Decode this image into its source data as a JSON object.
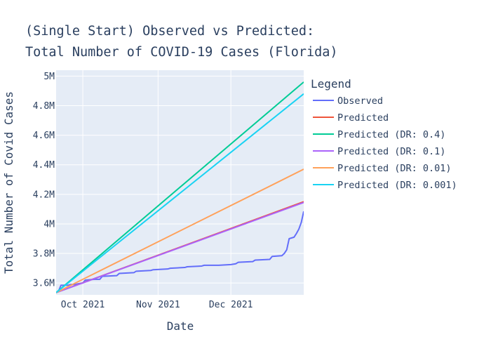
{
  "chart_data": {
    "type": "line",
    "title": [
      "(Single Start) Observed vs Predicted:",
      "Total Number of COVID-19 Cases (Florida)"
    ],
    "xlabel": "Date",
    "ylabel": "Total Number of Covid Cases",
    "x_start": "2021-09-20",
    "x_end": "2021-12-31",
    "xlim": [
      "2021-09-20",
      "2021-12-31"
    ],
    "ylim": [
      3.52,
      5.04
    ],
    "x_ticks": [
      {
        "date": "2021-10-01",
        "label": "Oct 2021"
      },
      {
        "date": "2021-11-01",
        "label": "Nov 2021"
      },
      {
        "date": "2021-12-01",
        "label": "Dec 2021"
      }
    ],
    "y_ticks": [
      {
        "value": 3.6,
        "label": "3.6M"
      },
      {
        "value": 3.8,
        "label": "3.8M"
      },
      {
        "value": 4.0,
        "label": "4M"
      },
      {
        "value": 4.2,
        "label": "4.2M"
      },
      {
        "value": 4.4,
        "label": "4.4M"
      },
      {
        "value": 4.6,
        "label": "4.6M"
      },
      {
        "value": 4.8,
        "label": "4.8M"
      },
      {
        "value": 5.0,
        "label": "5M"
      }
    ],
    "legend": {
      "title": "Legend",
      "position": "right"
    },
    "grid": true,
    "series": [
      {
        "name": "Observed",
        "color": "#636efa",
        "points": [
          [
            "2021-09-20",
            3.535
          ],
          [
            "2021-09-21",
            3.545
          ],
          [
            "2021-09-22",
            3.585
          ],
          [
            "2021-09-25",
            3.585
          ],
          [
            "2021-09-26",
            3.59
          ],
          [
            "2021-09-28",
            3.59
          ],
          [
            "2021-09-29",
            3.595
          ],
          [
            "2021-10-01",
            3.6
          ],
          [
            "2021-10-02",
            3.62
          ],
          [
            "2021-10-06",
            3.625
          ],
          [
            "2021-10-08",
            3.625
          ],
          [
            "2021-10-09",
            3.645
          ],
          [
            "2021-10-15",
            3.65
          ],
          [
            "2021-10-16",
            3.665
          ],
          [
            "2021-10-22",
            3.67
          ],
          [
            "2021-10-23",
            3.68
          ],
          [
            "2021-10-29",
            3.685
          ],
          [
            "2021-10-30",
            3.69
          ],
          [
            "2021-11-05",
            3.695
          ],
          [
            "2021-11-06",
            3.7
          ],
          [
            "2021-11-12",
            3.705
          ],
          [
            "2021-11-13",
            3.71
          ],
          [
            "2021-11-19",
            3.715
          ],
          [
            "2021-11-20",
            3.72
          ],
          [
            "2021-11-26",
            3.72
          ],
          [
            "2021-12-01",
            3.725
          ],
          [
            "2021-12-03",
            3.73
          ],
          [
            "2021-12-04",
            3.74
          ],
          [
            "2021-12-10",
            3.745
          ],
          [
            "2021-12-11",
            3.755
          ],
          [
            "2021-12-17",
            3.76
          ],
          [
            "2021-12-18",
            3.78
          ],
          [
            "2021-12-22",
            3.785
          ],
          [
            "2021-12-23",
            3.8
          ],
          [
            "2021-12-24",
            3.825
          ],
          [
            "2021-12-25",
            3.9
          ],
          [
            "2021-12-27",
            3.91
          ],
          [
            "2021-12-28",
            3.935
          ],
          [
            "2021-12-29",
            3.965
          ],
          [
            "2021-12-30",
            4.01
          ],
          [
            "2021-12-31",
            4.085
          ]
        ]
      },
      {
        "name": "Predicted",
        "color": "#ef553b",
        "start": 3.535,
        "end": 4.15
      },
      {
        "name": "Predicted (DR: 0.4)",
        "color": "#00cc96",
        "start": 3.535,
        "end": 4.96
      },
      {
        "name": "Predicted (DR: 0.1)",
        "color": "#ab63fa",
        "start": 3.535,
        "end": 4.145
      },
      {
        "name": "Predicted (DR: 0.01)",
        "color": "#ffa15a",
        "start": 3.535,
        "end": 4.37
      },
      {
        "name": "Predicted (DR: 0.001)",
        "color": "#19d3f3",
        "start": 3.535,
        "end": 4.88
      }
    ]
  }
}
